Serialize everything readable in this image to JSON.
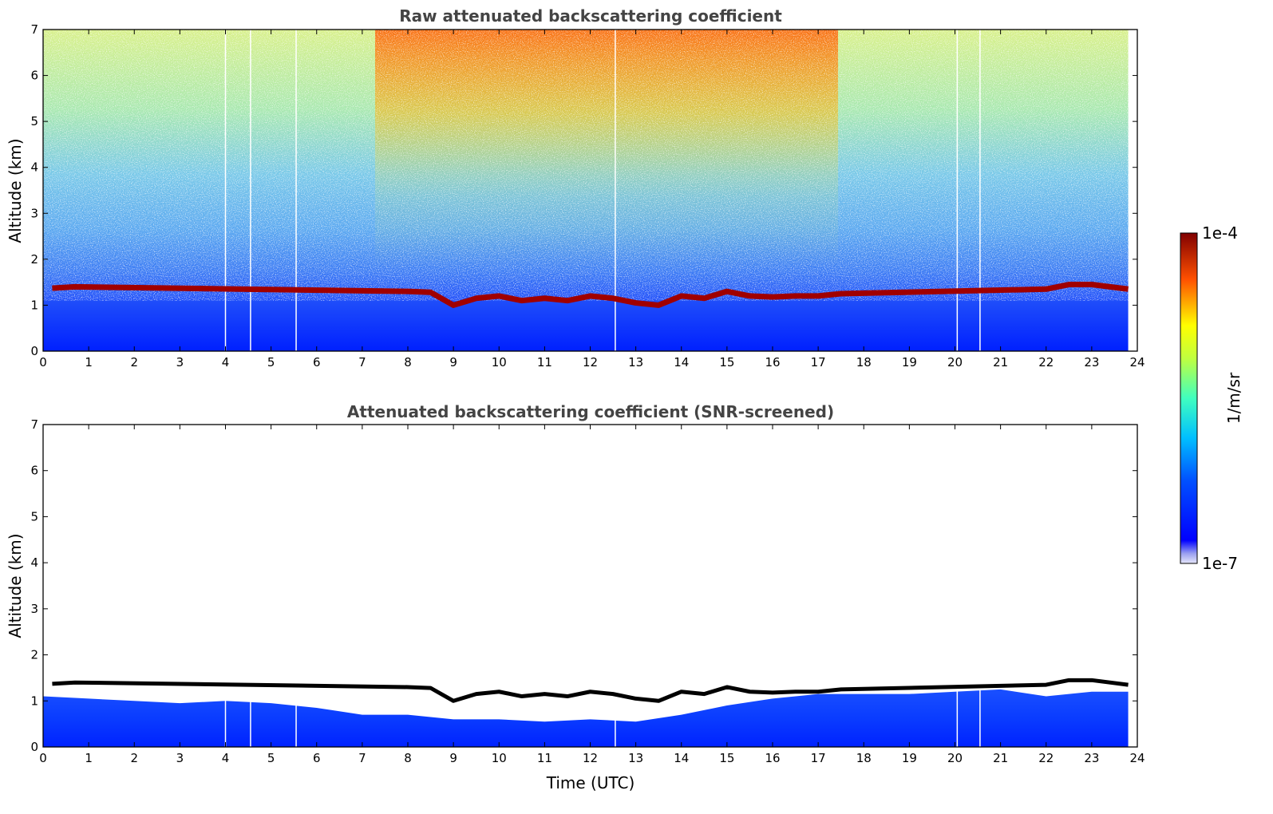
{
  "chart_data": [
    {
      "type": "heatmap",
      "title": "Raw attenuated backscattering coefficient",
      "xlabel": "",
      "ylabel": "Altitude (km)",
      "xlim": [
        0,
        24
      ],
      "ylim": [
        0,
        7
      ],
      "xticks": [
        "0",
        "1",
        "2",
        "3",
        "4",
        "5",
        "6",
        "7",
        "8",
        "9",
        "10",
        "11",
        "12",
        "13",
        "14",
        "15",
        "16",
        "17",
        "18",
        "19",
        "20",
        "21",
        "22",
        "23",
        "24"
      ],
      "yticks": [
        "0",
        "1",
        "2",
        "3",
        "4",
        "5",
        "6",
        "7"
      ],
      "colormap": "jet",
      "color_scale": "log",
      "data_gaps_utc": [
        4.0,
        4.55,
        5.55,
        12.55,
        20.05,
        20.55
      ],
      "data_end_utc": 23.8,
      "cloud_base_km": {
        "time_utc": [
          0.2,
          0.7,
          8.0,
          8.5,
          9.0,
          9.5,
          10.0,
          10.5,
          11.0,
          11.5,
          12.0,
          12.5,
          13.0,
          13.5,
          14.0,
          14.5,
          15.0,
          15.5,
          16.0,
          16.5,
          17.0,
          17.5,
          22.0,
          22.5,
          23.0,
          23.8
        ],
        "altitude_km": [
          1.37,
          1.4,
          1.3,
          1.28,
          1.0,
          1.15,
          1.2,
          1.1,
          1.15,
          1.1,
          1.2,
          1.15,
          1.05,
          1.0,
          1.2,
          1.15,
          1.3,
          1.2,
          1.18,
          1.2,
          1.2,
          1.25,
          1.35,
          1.45,
          1.45,
          1.35
        ]
      }
    },
    {
      "type": "heatmap",
      "title": "Attenuated backscattering coefficient (SNR-screened)",
      "xlabel": "Time (UTC)",
      "ylabel": "Altitude (km)",
      "xlim": [
        0,
        24
      ],
      "ylim": [
        0,
        7
      ],
      "xticks": [
        "0",
        "1",
        "2",
        "3",
        "4",
        "5",
        "6",
        "7",
        "8",
        "9",
        "10",
        "11",
        "12",
        "13",
        "14",
        "15",
        "16",
        "17",
        "18",
        "19",
        "20",
        "21",
        "22",
        "23",
        "24"
      ],
      "yticks": [
        "0",
        "1",
        "2",
        "3",
        "4",
        "5",
        "6",
        "7"
      ],
      "colormap": "jet",
      "color_scale": "log",
      "screened_layer_top_km": {
        "time_utc": [
          0,
          1,
          2,
          3,
          4,
          5,
          6,
          7,
          8,
          9,
          10,
          11,
          12,
          13,
          14,
          15,
          16,
          17,
          18,
          19,
          20,
          21,
          22,
          23,
          23.8
        ],
        "altitude_km": [
          1.1,
          1.05,
          1.0,
          0.95,
          1.0,
          0.95,
          0.85,
          0.7,
          0.7,
          0.6,
          0.6,
          0.55,
          0.6,
          0.55,
          0.7,
          0.9,
          1.05,
          1.15,
          1.15,
          1.15,
          1.2,
          1.25,
          1.1,
          1.2,
          1.2
        ]
      }
    }
  ],
  "colorbar": {
    "max_label": "1e-4",
    "min_label": "1e-7",
    "label": "1/m/sr",
    "min_value": 1e-07,
    "max_value": 0.0001
  },
  "colors": {
    "title": "#444444",
    "cloud": "#a00000",
    "screened_cloud_edge": "#000000",
    "low_signal": "#0022ff"
  }
}
